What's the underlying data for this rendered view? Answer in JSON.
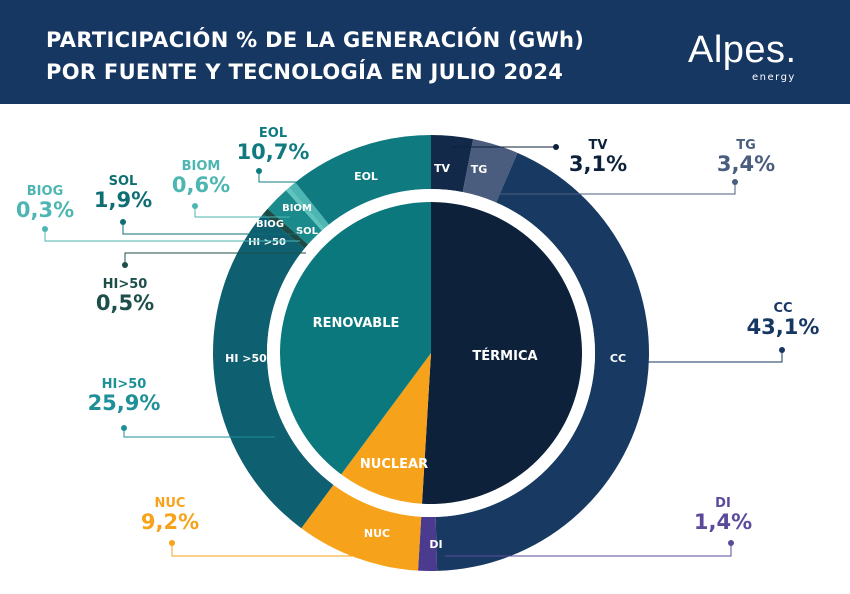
{
  "header": {
    "title_line1": "PARTICIPACIÓN % DE LA GENERACIÓN (GWh)",
    "title_line2": "POR FUENTE Y TECNOLOGÍA EN JULIO 2024",
    "logo": "Alpes.",
    "logo_sub": "energy"
  },
  "chart_data": {
    "type": "pie",
    "title": "PARTICIPACIÓN % DE LA GENERACIÓN (GWh) POR FUENTE Y TECNOLOGÍA EN JULIO 2024",
    "inner": [
      {
        "label": "TÉRMICA",
        "value": 51.0,
        "color": "#0d213b"
      },
      {
        "label": "NUCLEAR",
        "value": 9.2,
        "color": "#f7a21b"
      },
      {
        "label": "RENOVABLE",
        "value": 39.9,
        "color": "#0b787d"
      }
    ],
    "outer": [
      {
        "label": "TV",
        "key": "TV",
        "value": 3.1,
        "value_text": "3,1%",
        "color": "#13294a",
        "text_color": "#0d213b"
      },
      {
        "label": "TG",
        "key": "TG",
        "value": 3.4,
        "value_text": "3,4%",
        "color": "#4a5d7e",
        "text_color": "#4a5d7e"
      },
      {
        "label": "CC",
        "key": "CC",
        "value": 43.1,
        "value_text": "43,1%",
        "color": "#183a62",
        "text_color": "#163761"
      },
      {
        "label": "DI",
        "key": "DI",
        "value": 1.4,
        "value_text": "1,4%",
        "color": "#4b3b8f",
        "text_color": "#5b4a9c"
      },
      {
        "label": "NUC",
        "key": "NUC",
        "value": 9.2,
        "value_text": "9,2%",
        "color": "#f7a21b",
        "text_color": "#f7a21b"
      },
      {
        "label": "HI >50",
        "key": "HI>50",
        "value": 25.9,
        "value_text": "25,9%",
        "color": "#0e5f70",
        "text_color": "#1f8f98"
      },
      {
        "label": "HI >50",
        "key": "HI>50",
        "value": 0.5,
        "value_text": "0,5%",
        "color": "#1c4a45",
        "text_color": "#1d4f4a"
      },
      {
        "label": "SOL",
        "key": "SOL",
        "value": 1.9,
        "value_text": "1,9%",
        "color": "#1a8a8c",
        "text_color": "#0f6e74"
      },
      {
        "label": "BIOG",
        "key": "BIOG",
        "value": 0.3,
        "value_text": "0,3%",
        "color": "#5ec4bd",
        "text_color": "#4db6b3"
      },
      {
        "label": "BIOM",
        "key": "BIOM",
        "value": 0.6,
        "value_text": "0,6%",
        "color": "#4db6b3",
        "text_color": "#4db6b3"
      },
      {
        "label": "EOL",
        "key": "EOL",
        "value": 10.7,
        "value_text": "10,7%",
        "color": "#0f7a80",
        "text_color": "#0f7a80"
      }
    ]
  }
}
